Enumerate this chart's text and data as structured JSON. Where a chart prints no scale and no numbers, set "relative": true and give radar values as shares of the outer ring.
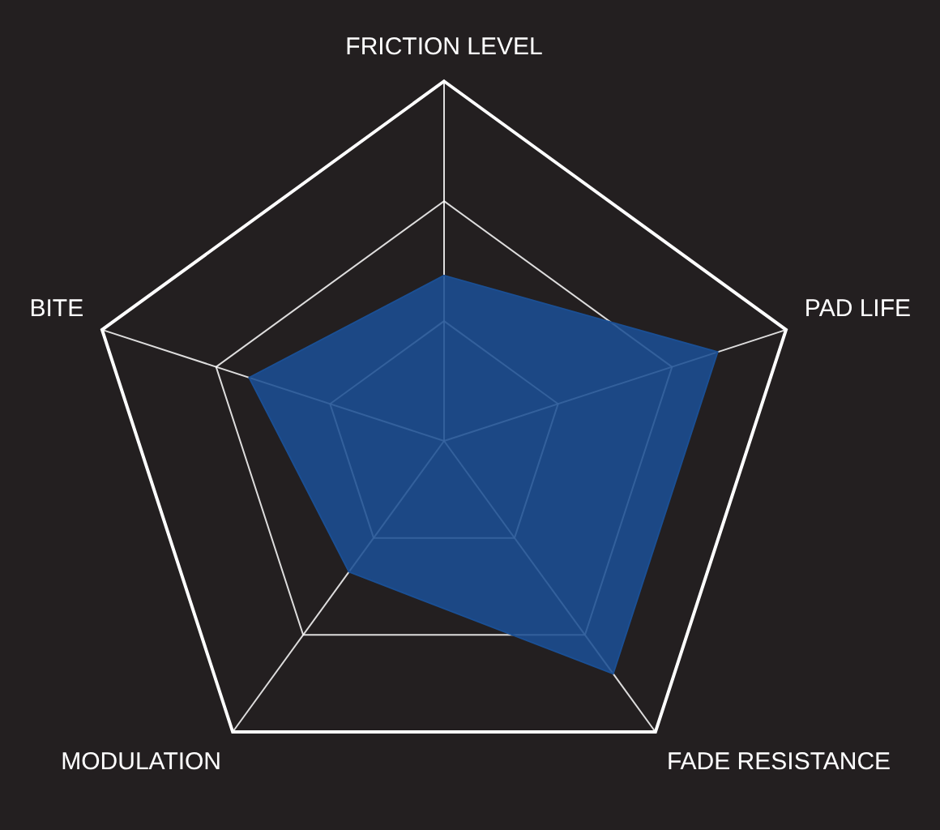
{
  "chart_data": {
    "type": "radar",
    "relative": true,
    "grid": true,
    "legend": false,
    "categories": [
      "FRICTION LEVEL",
      "PAD LIFE",
      "FADE RESISTANCE",
      "MODULATION",
      "BITE"
    ],
    "series": [
      {
        "color": "#1b4f93",
        "values": [
          0.46,
          0.8,
          0.8,
          0.45,
          0.57
        ]
      }
    ]
  }
}
